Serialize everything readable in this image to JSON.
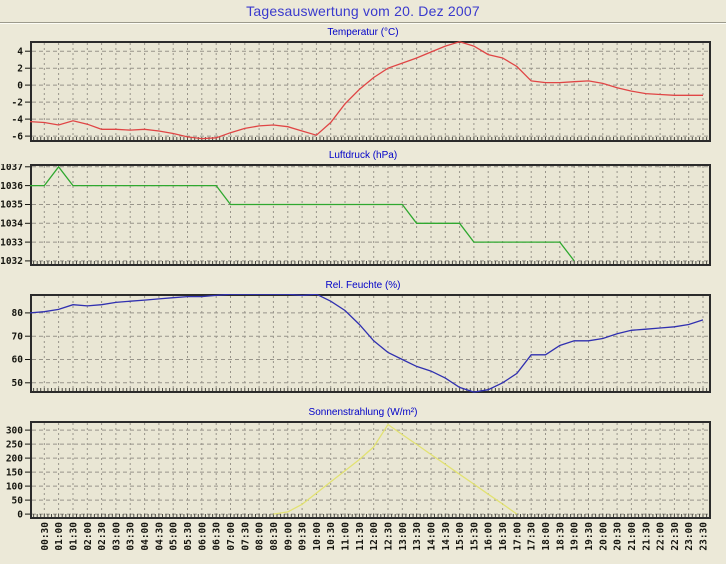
{
  "page": {
    "title": "Tagesauswertung vom 20. Dez 2007"
  },
  "x_ticks": [
    "00:30",
    "01:00",
    "01:30",
    "02:00",
    "02:30",
    "03:00",
    "03:30",
    "04:00",
    "04:30",
    "05:00",
    "05:30",
    "06:00",
    "06:30",
    "07:00",
    "07:30",
    "08:00",
    "08:30",
    "09:00",
    "09:30",
    "10:00",
    "10:30",
    "11:00",
    "11:30",
    "12:00",
    "12:30",
    "13:00",
    "13:30",
    "14:00",
    "14:30",
    "15:00",
    "15:30",
    "16:00",
    "16:30",
    "17:00",
    "17:30",
    "18:00",
    "18:30",
    "19:00",
    "19:30",
    "20:00",
    "20:30",
    "21:00",
    "21:30",
    "22:00",
    "22:30",
    "23:00",
    "23:30"
  ],
  "x_axis": {
    "start": "00:00",
    "step_minutes": 30,
    "points": 48,
    "labels_shown_from": "00:30",
    "label_rotation_deg": 90
  },
  "colors": {
    "background": "#ece9d8",
    "plot_background": "#e9e6d4",
    "grid": "#98948a",
    "frame": "#2b2b2b",
    "title_blue": "#3a3acd",
    "chart_title_blue": "#0000c8",
    "temperature_line": "#e04545",
    "pressure_line": "#2fa82f",
    "humidity_line": "#3030b0",
    "radiation_line": "#e2e272"
  },
  "chart_data": [
    {
      "type": "line",
      "name": "temperature",
      "title": "Temperatur (°C)",
      "color": "#e04545",
      "ylim": [
        -6.7,
        5.2
      ],
      "yticks": [
        4,
        2,
        0,
        -2,
        -4,
        -6
      ],
      "grid": true,
      "legend": "none",
      "values": [
        -4.3,
        -4.4,
        -4.7,
        -4.2,
        -4.6,
        -5.2,
        -5.2,
        -5.3,
        -5.2,
        -5.4,
        -5.7,
        -6.1,
        -6.3,
        -6.2,
        -5.6,
        -5.1,
        -4.8,
        -4.7,
        -4.9,
        -5.4,
        -5.9,
        -4.4,
        -2.2,
        -0.5,
        0.9,
        2.0,
        2.6,
        3.2,
        3.9,
        4.6,
        5.1,
        4.6,
        3.6,
        3.2,
        2.2,
        0.5,
        0.3,
        0.3,
        0.4,
        0.5,
        0.2,
        -0.3,
        -0.7,
        -1.0,
        -1.1,
        -1.2,
        -1.2,
        -1.2
      ]
    },
    {
      "type": "line",
      "name": "pressure",
      "title": "Luftdruck (hPa)",
      "color": "#2fa82f",
      "ylim": [
        1031.73,
        1037.15
      ],
      "yticks": [
        1037,
        1036,
        1035,
        1034,
        1033,
        1032
      ],
      "grid": true,
      "legend": "none",
      "values": [
        1036,
        1036,
        1037,
        1036,
        1036,
        1036,
        1036,
        1036,
        1036,
        1036,
        1036,
        1036,
        1036,
        1036,
        1035,
        1035,
        1035,
        1035,
        1035,
        1035,
        1035,
        1035,
        1035,
        1035,
        1035,
        1035,
        1035,
        1034,
        1034,
        1034,
        1034,
        1033,
        1033,
        1033,
        1033,
        1033,
        1033,
        1033,
        1032,
        null,
        null,
        null,
        null,
        null,
        null,
        null,
        null,
        null
      ]
    },
    {
      "type": "line",
      "name": "humidity",
      "title": "Rel. Feuchte (%)",
      "color": "#3030b0",
      "ylim": [
        45.6,
        88.1
      ],
      "yticks": [
        80,
        70,
        60,
        50
      ],
      "grid": true,
      "legend": "none",
      "values": [
        80,
        80.5,
        81.5,
        83.5,
        83,
        83.5,
        84.5,
        85,
        85.5,
        86,
        86.5,
        87,
        87,
        87.5,
        88,
        88,
        88,
        88,
        88,
        87.5,
        88,
        85,
        81,
        75,
        68,
        63,
        60,
        57,
        55,
        52,
        48,
        46,
        47,
        50,
        54,
        62,
        62,
        66,
        68,
        68,
        69,
        71,
        72.5,
        73,
        73.5,
        74,
        75,
        77
      ]
    },
    {
      "type": "line",
      "name": "radiation",
      "title": "Sonnenstrahlung (W/m²)",
      "color": "#e2e272",
      "ylim": [
        -17.5,
        332.5
      ],
      "yticks": [
        300,
        250,
        200,
        150,
        100,
        50,
        0
      ],
      "grid": true,
      "legend": "none",
      "values": [
        null,
        null,
        null,
        null,
        null,
        null,
        null,
        null,
        null,
        null,
        null,
        null,
        null,
        null,
        null,
        null,
        null,
        0,
        8,
        35,
        75,
        115,
        155,
        195,
        240,
        320,
        284,
        249,
        213,
        178,
        142,
        107,
        71,
        36,
        0,
        null,
        null,
        null,
        null,
        null,
        null,
        null,
        null,
        null,
        null,
        null,
        null,
        null
      ]
    }
  ]
}
